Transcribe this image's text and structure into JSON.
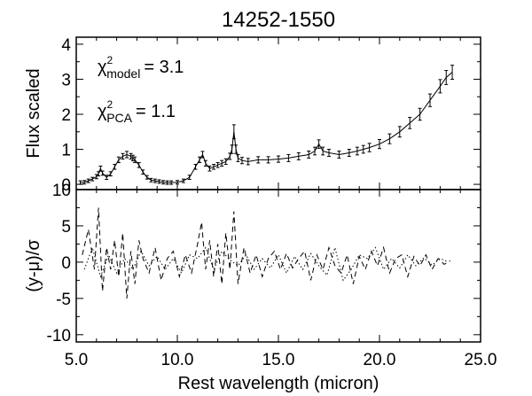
{
  "chart_data": [
    {
      "type": "line",
      "title": "14252-1550",
      "xlabel": "",
      "ylabel": "Flux scaled",
      "xlim": [
        5.0,
        25.0
      ],
      "ylim": [
        -0.15,
        4.2
      ],
      "x_ticks": [
        5.0,
        10.0,
        15.0,
        20.0,
        25.0
      ],
      "y_ticks": [
        0,
        1,
        2,
        3,
        4
      ],
      "y_tick_labels": [
        "0",
        "1",
        "2",
        "3",
        "4"
      ],
      "annotations": [
        {
          "symbol": "χ",
          "sup": "2",
          "sub": "model",
          "value": "= 3.1"
        },
        {
          "symbol": "χ",
          "sup": "2",
          "sub": "PCA",
          "value": "= 1.1"
        }
      ],
      "series": [
        {
          "style": "line-with-errorbars",
          "x": [
            5.2,
            5.4,
            5.6,
            5.8,
            6.0,
            6.1,
            6.2,
            6.3,
            6.5,
            6.7,
            6.9,
            7.1,
            7.3,
            7.5,
            7.7,
            7.8,
            7.9,
            8.1,
            8.3,
            8.5,
            8.7,
            8.9,
            9.1,
            9.3,
            9.5,
            9.7,
            10.0,
            10.3,
            10.6,
            10.9,
            11.1,
            11.25,
            11.4,
            11.6,
            11.8,
            12.0,
            12.2,
            12.4,
            12.6,
            12.7,
            12.8,
            12.9,
            13.0,
            13.2,
            13.5,
            14.0,
            14.5,
            15.0,
            15.5,
            16.0,
            16.5,
            16.8,
            17.0,
            17.2,
            17.5,
            18.0,
            18.5,
            18.9,
            19.2,
            19.5,
            20.0,
            20.5,
            21.0,
            21.5,
            22.0,
            22.5,
            23.0,
            23.3,
            23.6
          ],
          "y": [
            0.05,
            0.06,
            0.1,
            0.15,
            0.22,
            0.3,
            0.45,
            0.32,
            0.2,
            0.3,
            0.5,
            0.7,
            0.8,
            0.85,
            0.8,
            0.75,
            0.7,
            0.55,
            0.35,
            0.2,
            0.12,
            0.1,
            0.08,
            0.06,
            0.05,
            0.05,
            0.06,
            0.1,
            0.2,
            0.5,
            0.7,
            0.85,
            0.6,
            0.45,
            0.5,
            0.55,
            0.6,
            0.65,
            0.8,
            1.0,
            1.5,
            1.0,
            0.75,
            0.68,
            0.65,
            0.7,
            0.7,
            0.72,
            0.75,
            0.8,
            0.85,
            0.95,
            1.15,
            0.95,
            0.9,
            0.85,
            0.9,
            0.95,
            1.0,
            1.05,
            1.15,
            1.3,
            1.5,
            1.75,
            2.0,
            2.4,
            2.8,
            3.05,
            3.2
          ],
          "yerr": [
            0.05,
            0.05,
            0.05,
            0.05,
            0.06,
            0.06,
            0.07,
            0.06,
            0.06,
            0.06,
            0.07,
            0.08,
            0.08,
            0.09,
            0.08,
            0.08,
            0.08,
            0.07,
            0.06,
            0.05,
            0.05,
            0.05,
            0.05,
            0.05,
            0.05,
            0.05,
            0.05,
            0.05,
            0.06,
            0.07,
            0.08,
            0.09,
            0.08,
            0.07,
            0.07,
            0.07,
            0.08,
            0.08,
            0.09,
            0.12,
            0.2,
            0.12,
            0.1,
            0.09,
            0.09,
            0.09,
            0.09,
            0.09,
            0.1,
            0.1,
            0.1,
            0.11,
            0.12,
            0.11,
            0.1,
            0.1,
            0.1,
            0.11,
            0.11,
            0.12,
            0.13,
            0.14,
            0.15,
            0.16,
            0.17,
            0.18,
            0.19,
            0.2,
            0.2
          ]
        }
      ]
    },
    {
      "type": "line",
      "title": "",
      "xlabel": "Rest wavelength (micron)",
      "ylabel": "(y-μ)/σ",
      "xlim": [
        5.0,
        25.0
      ],
      "ylim": [
        -11,
        10
      ],
      "x_ticks": [
        5.0,
        10.0,
        15.0,
        20.0,
        25.0
      ],
      "x_tick_labels": [
        "5.0",
        "10.0",
        "15.0",
        "20.0",
        "25.0"
      ],
      "y_ticks": [
        -10,
        -5,
        0,
        5,
        10
      ],
      "y_tick_labels": [
        "-10",
        "-5",
        "0",
        "5",
        "10"
      ],
      "series": [
        {
          "style": "dashed",
          "x": [
            5.3,
            5.6,
            5.9,
            6.1,
            6.3,
            6.5,
            6.7,
            6.9,
            7.1,
            7.3,
            7.5,
            7.7,
            7.9,
            8.1,
            8.3,
            8.6,
            8.9,
            9.2,
            9.5,
            9.8,
            10.1,
            10.4,
            10.7,
            11.0,
            11.2,
            11.4,
            11.6,
            11.8,
            12.0,
            12.2,
            12.4,
            12.6,
            12.8,
            13.0,
            13.3,
            13.6,
            13.9,
            14.2,
            14.5,
            14.8,
            15.1,
            15.4,
            15.7,
            16.0,
            16.3,
            16.6,
            16.9,
            17.2,
            17.5,
            17.8,
            18.1,
            18.4,
            18.7,
            19.0,
            19.3,
            19.6,
            19.9,
            20.2,
            20.5,
            20.8,
            21.1,
            21.4,
            21.7,
            22.0,
            22.3,
            22.6,
            22.9,
            23.2,
            23.5
          ],
          "y": [
            1,
            4.5,
            -1,
            7.5,
            -4,
            2,
            -1,
            3,
            -2,
            4,
            -5,
            1.5,
            -3,
            3,
            0.5,
            -1.5,
            2,
            -2.5,
            0.5,
            1.5,
            -2,
            1,
            -1.5,
            2.5,
            5.5,
            -1,
            3,
            -2,
            2.5,
            -3,
            4,
            -1,
            7,
            -3,
            2,
            -1.5,
            1,
            -2,
            0.5,
            1.5,
            -1,
            1.2,
            -0.8,
            0.5,
            1.5,
            -2.5,
            1,
            -1,
            2,
            -0.5,
            -1.5,
            1,
            -3,
            0.8,
            -1,
            1.5,
            -0.5,
            2,
            -1.5,
            0.5,
            1,
            -2,
            0.8,
            -0.5,
            1,
            -1,
            0.5,
            -0.3,
            0.2
          ]
        },
        {
          "style": "dotted",
          "x": [
            5.4,
            5.8,
            6.2,
            6.6,
            7.0,
            7.4,
            7.8,
            8.2,
            8.6,
            9.0,
            9.4,
            9.8,
            10.2,
            10.6,
            11.0,
            11.4,
            11.8,
            12.2,
            12.6,
            13.0,
            13.4,
            13.8,
            14.2,
            14.6,
            15.0,
            15.4,
            15.8,
            16.2,
            16.6,
            17.0,
            17.4,
            17.8,
            18.2,
            18.6,
            19.0,
            19.4,
            19.8,
            20.2,
            20.6,
            21.0,
            21.4,
            21.8,
            22.2,
            22.6,
            23.0,
            23.4
          ],
          "y": [
            -1,
            2,
            -2,
            1,
            -1.5,
            0.5,
            -1,
            1.5,
            -0.5,
            0.8,
            -1,
            0.5,
            -1.5,
            1,
            0.5,
            2,
            -1,
            1.5,
            0.3,
            -0.5,
            1,
            -1,
            0.5,
            -0.8,
            1,
            -1.5,
            0.8,
            -1,
            1.2,
            -0.5,
            -1.8,
            2,
            -2.5,
            -1,
            1,
            0.5,
            2,
            -1,
            0.5,
            -0.8,
            1,
            -0.5,
            0.6,
            -0.4,
            0.5,
            0
          ]
        }
      ]
    }
  ]
}
